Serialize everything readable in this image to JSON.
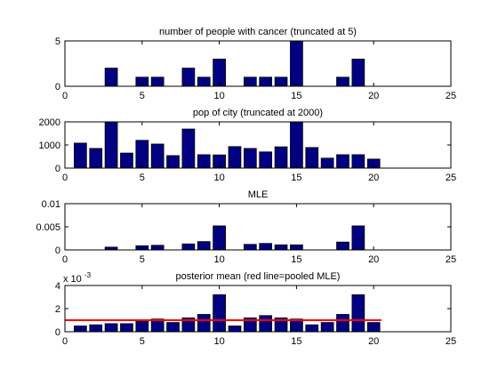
{
  "figure": {
    "colors": {
      "bar": "#000080",
      "bar_edge": "#000000",
      "pooled_line": "#ff0000",
      "axes": "#000000",
      "background": "#ffffff"
    }
  },
  "chart_data": [
    {
      "type": "bar",
      "title": "number of people with cancer (truncated at 5)",
      "xlabel": "",
      "ylabel": "",
      "x": [
        1,
        2,
        3,
        4,
        5,
        6,
        7,
        8,
        9,
        10,
        11,
        12,
        13,
        14,
        15,
        16,
        17,
        18,
        19,
        20
      ],
      "values": [
        0,
        0,
        2,
        0,
        1,
        1,
        0,
        2,
        1,
        3,
        0,
        1,
        1,
        1,
        5,
        0,
        0,
        1,
        3,
        0
      ],
      "xlim": [
        0,
        25
      ],
      "ylim": [
        0,
        5
      ],
      "xticks": [
        0,
        5,
        10,
        15,
        20,
        25
      ],
      "yticks": [
        0,
        5
      ],
      "ytick_labels": [
        "0",
        "5"
      ],
      "grid": false
    },
    {
      "type": "bar",
      "title": "pop of city (truncated at 2000)",
      "xlabel": "",
      "ylabel": "",
      "x": [
        1,
        2,
        3,
        4,
        5,
        6,
        7,
        8,
        9,
        10,
        11,
        12,
        13,
        14,
        15,
        16,
        17,
        18,
        19,
        20
      ],
      "values": [
        1080,
        850,
        2000,
        650,
        1200,
        1040,
        540,
        1690,
        580,
        570,
        930,
        850,
        700,
        920,
        2000,
        890,
        430,
        580,
        580,
        390
      ],
      "xlim": [
        0,
        25
      ],
      "ylim": [
        0,
        2000
      ],
      "xticks": [
        0,
        5,
        10,
        15,
        20,
        25
      ],
      "yticks": [
        0,
        1000,
        2000
      ],
      "ytick_labels": [
        "0",
        "1000",
        "2000"
      ],
      "grid": false
    },
    {
      "type": "bar",
      "title": "MLE",
      "xlabel": "",
      "ylabel": "",
      "x": [
        1,
        2,
        3,
        4,
        5,
        6,
        7,
        8,
        9,
        10,
        11,
        12,
        13,
        14,
        15,
        16,
        17,
        18,
        19,
        20
      ],
      "values": [
        0,
        0,
        0.0006,
        0,
        0.0009,
        0.001,
        0,
        0.0013,
        0.0018,
        0.0052,
        0,
        0.0012,
        0.0014,
        0.0011,
        0.0011,
        0,
        0,
        0.0017,
        0.0052,
        0
      ],
      "xlim": [
        0,
        25
      ],
      "ylim": [
        0,
        0.01
      ],
      "xticks": [
        0,
        5,
        10,
        15,
        20,
        25
      ],
      "yticks": [
        0,
        0.005,
        0.01
      ],
      "ytick_labels": [
        "0",
        "0.005",
        "0.01"
      ],
      "grid": false
    },
    {
      "type": "bar",
      "title": "posterior mean (red line=pooled MLE)",
      "xlabel": "",
      "ylabel": "",
      "y_exponent_label": "x 10",
      "y_exponent_power": "-3",
      "x": [
        1,
        2,
        3,
        4,
        5,
        6,
        7,
        8,
        9,
        10,
        11,
        12,
        13,
        14,
        15,
        16,
        17,
        18,
        19,
        20
      ],
      "values": [
        0.0005,
        0.0006,
        0.0007,
        0.0007,
        0.0009,
        0.0011,
        0.0008,
        0.0012,
        0.0015,
        0.0032,
        0.0005,
        0.0012,
        0.0014,
        0.0012,
        0.0011,
        0.0006,
        0.0008,
        0.0015,
        0.0032,
        0.0008
      ],
      "pooled_mle": 0.001,
      "pooled_mle_x_range": [
        0,
        20.5
      ],
      "xlim": [
        0,
        25
      ],
      "ylim": [
        0,
        0.004
      ],
      "xticks": [
        0,
        5,
        10,
        15,
        20,
        25
      ],
      "yticks": [
        0,
        0.002,
        0.004
      ],
      "ytick_labels": [
        "0",
        "2",
        "4"
      ],
      "grid": false
    }
  ]
}
